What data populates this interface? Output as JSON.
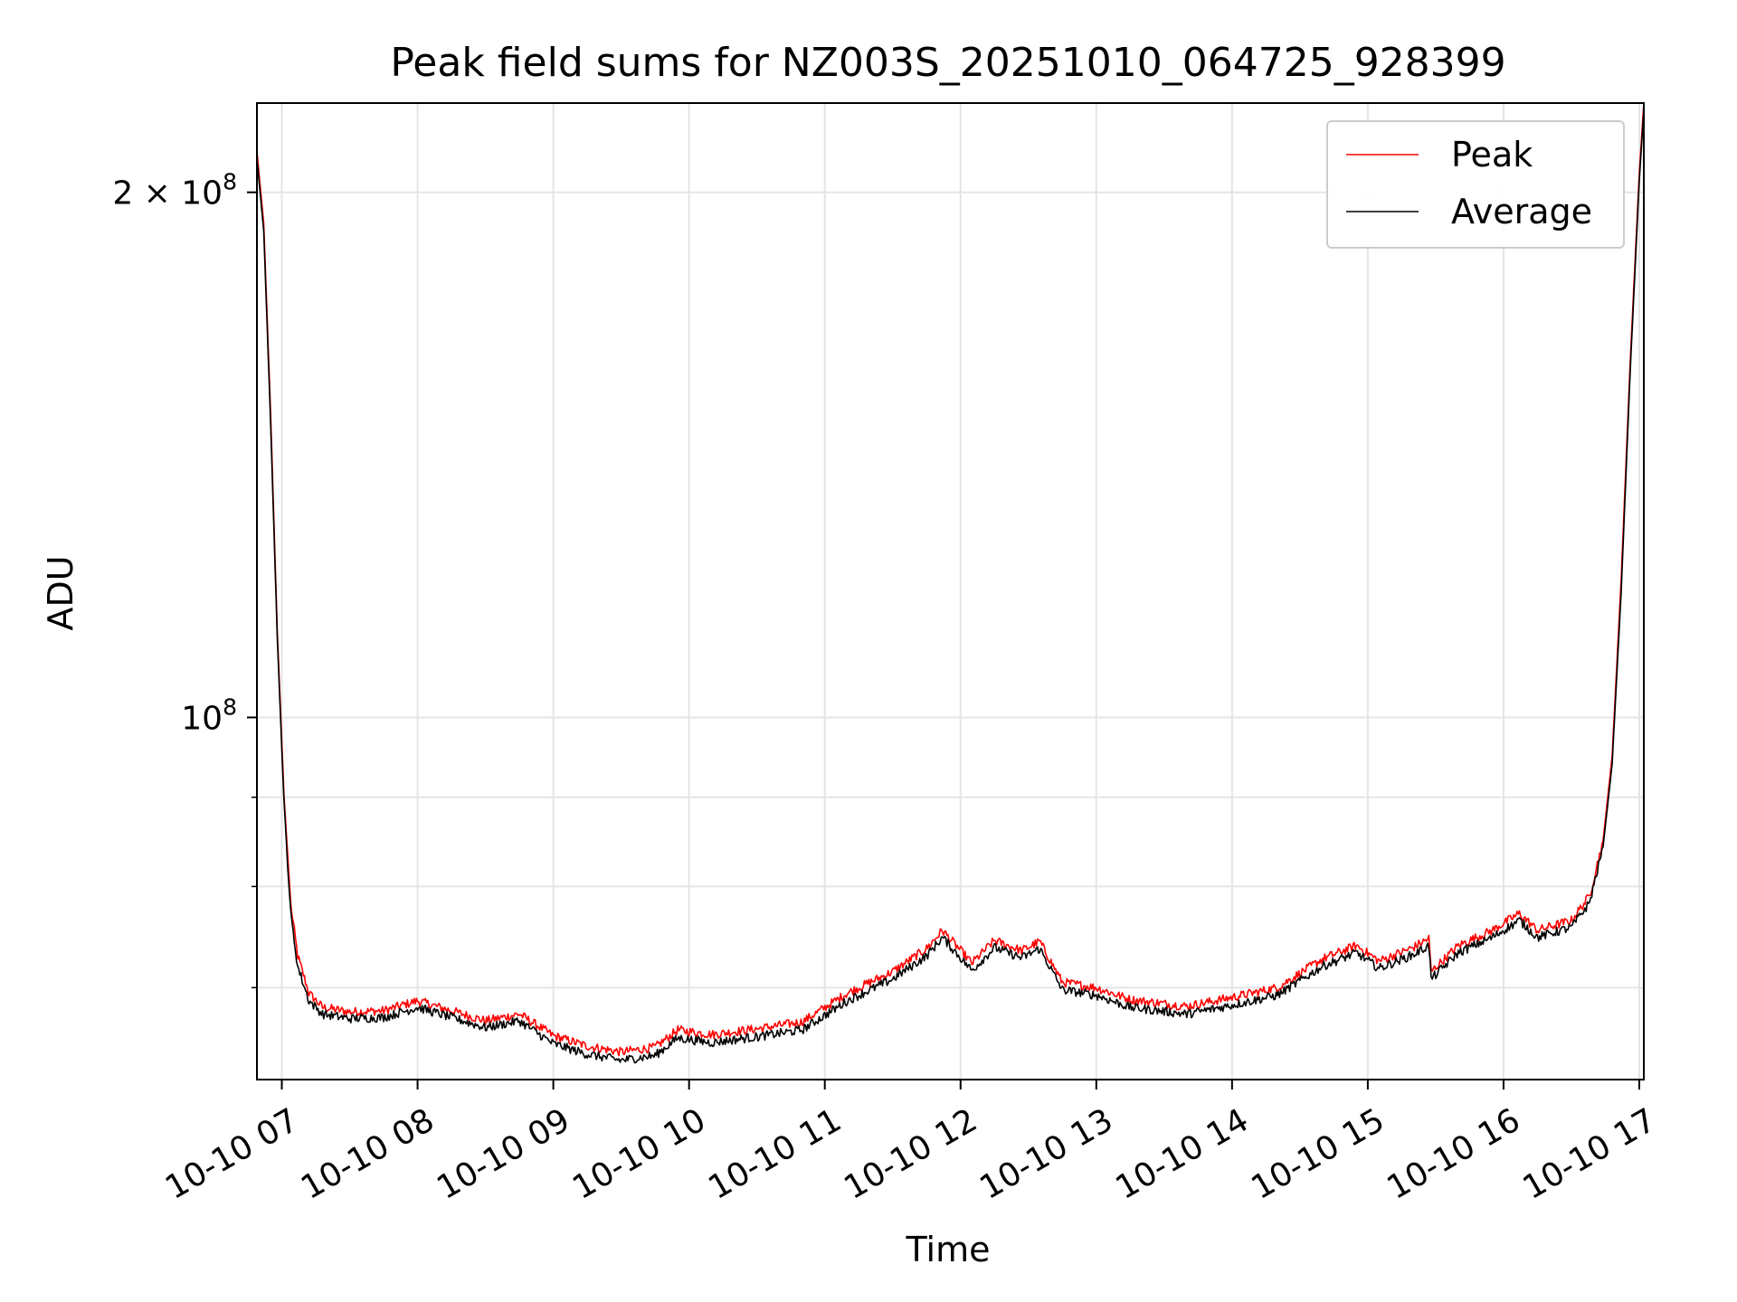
{
  "chart_data": {
    "type": "line",
    "title": "Peak field sums for NZ003S_20251010_064725_928399",
    "xlabel": "Time",
    "ylabel": "ADU",
    "x_axis_type": "time",
    "xlim": [
      "2025-10-10 06:49",
      "2025-10-10 17:02"
    ],
    "x_ticks": [
      "10-10 07",
      "10-10 08",
      "10-10 09",
      "10-10 10",
      "10-10 11",
      "10-10 12",
      "10-10 13",
      "10-10 14",
      "10-10 15",
      "10-10 16",
      "10-10 17"
    ],
    "y_scale": "log",
    "ylim": [
      62000000,
      225000000
    ],
    "y_tick_labels": [
      {
        "value": 100000000,
        "base": "10",
        "exp": "8",
        "label": "10^8"
      },
      {
        "value": 200000000,
        "mantissa": "2",
        "base": "10",
        "exp": "8",
        "label": "2 × 10^8"
      }
    ],
    "y_minor_ticks": [
      70000000,
      80000000,
      90000000
    ],
    "grid": true,
    "legend_position": "top-right",
    "series": [
      {
        "name": "Peak",
        "color": "#ff0000",
        "points": [
          [
            "2025-10-10 06:49",
            211000000
          ],
          [
            "2025-10-10 06:52",
            192000000
          ],
          [
            "2025-10-10 06:55",
            150000000
          ],
          [
            "2025-10-10 06:58",
            112000000
          ],
          [
            "2025-10-10 07:01",
            90000000
          ],
          [
            "2025-10-10 07:04",
            78000000
          ],
          [
            "2025-10-10 07:07",
            73000000
          ],
          [
            "2025-10-10 07:12",
            69500000
          ],
          [
            "2025-10-10 07:18",
            68200000
          ],
          [
            "2025-10-10 07:30",
            67800000
          ],
          [
            "2025-10-10 07:45",
            67900000
          ],
          [
            "2025-10-10 08:00",
            68800000
          ],
          [
            "2025-10-10 08:15",
            67900000
          ],
          [
            "2025-10-10 08:30",
            67000000
          ],
          [
            "2025-10-10 08:45",
            67600000
          ],
          [
            "2025-10-10 09:00",
            65700000
          ],
          [
            "2025-10-10 09:15",
            64800000
          ],
          [
            "2025-10-10 09:30",
            64300000
          ],
          [
            "2025-10-10 09:45",
            64700000
          ],
          [
            "2025-10-10 09:55",
            66200000
          ],
          [
            "2025-10-10 10:10",
            65800000
          ],
          [
            "2025-10-10 10:30",
            66300000
          ],
          [
            "2025-10-10 10:50",
            66900000
          ],
          [
            "2025-10-10 11:10",
            69500000
          ],
          [
            "2025-10-10 11:30",
            71500000
          ],
          [
            "2025-10-10 11:45",
            73700000
          ],
          [
            "2025-10-10 11:52",
            75500000
          ],
          [
            "2025-10-10 12:05",
            72300000
          ],
          [
            "2025-10-10 12:15",
            74500000
          ],
          [
            "2025-10-10 12:27",
            73500000
          ],
          [
            "2025-10-10 12:35",
            74400000
          ],
          [
            "2025-10-10 12:45",
            70500000
          ],
          [
            "2025-10-10 13:00",
            70000000
          ],
          [
            "2025-10-10 13:15",
            68900000
          ],
          [
            "2025-10-10 13:40",
            68300000
          ],
          [
            "2025-10-10 14:00",
            69100000
          ],
          [
            "2025-10-10 14:20",
            70000000
          ],
          [
            "2025-10-10 14:40",
            72700000
          ],
          [
            "2025-10-10 14:55",
            74000000
          ],
          [
            "2025-10-10 15:05",
            72500000
          ],
          [
            "2025-10-10 15:20",
            73800000
          ],
          [
            "2025-10-10 15:27",
            74700000
          ],
          [
            "2025-10-10 15:28",
            71500000
          ],
          [
            "2025-10-10 15:40",
            74000000
          ],
          [
            "2025-10-10 15:55",
            75500000
          ],
          [
            "2025-10-10 16:07",
            77200000
          ],
          [
            "2025-10-10 16:15",
            75500000
          ],
          [
            "2025-10-10 16:30",
            76500000
          ],
          [
            "2025-10-10 16:38",
            79000000
          ],
          [
            "2025-10-10 16:44",
            85000000
          ],
          [
            "2025-10-10 16:48",
            95000000
          ],
          [
            "2025-10-10 16:52",
            120000000
          ],
          [
            "2025-10-10 16:56",
            160000000
          ],
          [
            "2025-10-10 17:00",
            205000000
          ],
          [
            "2025-10-10 17:02",
            225000000
          ]
        ]
      },
      {
        "name": "Average",
        "color": "#000000",
        "points": [
          [
            "2025-10-10 06:49",
            209000000
          ],
          [
            "2025-10-10 06:52",
            190000000
          ],
          [
            "2025-10-10 06:55",
            148000000
          ],
          [
            "2025-10-10 06:58",
            111000000
          ],
          [
            "2025-10-10 07:01",
            89000000
          ],
          [
            "2025-10-10 07:04",
            77000000
          ],
          [
            "2025-10-10 07:07",
            72000000
          ],
          [
            "2025-10-10 07:12",
            68800000
          ],
          [
            "2025-10-10 07:18",
            67600000
          ],
          [
            "2025-10-10 07:30",
            67200000
          ],
          [
            "2025-10-10 07:45",
            67300000
          ],
          [
            "2025-10-10 08:00",
            68200000
          ],
          [
            "2025-10-10 08:15",
            67300000
          ],
          [
            "2025-10-10 08:30",
            66400000
          ],
          [
            "2025-10-10 08:45",
            67000000
          ],
          [
            "2025-10-10 09:00",
            65000000
          ],
          [
            "2025-10-10 09:15",
            64100000
          ],
          [
            "2025-10-10 09:30",
            63600000
          ],
          [
            "2025-10-10 09:45",
            64000000
          ],
          [
            "2025-10-10 09:55",
            65500000
          ],
          [
            "2025-10-10 10:10",
            65100000
          ],
          [
            "2025-10-10 10:30",
            65600000
          ],
          [
            "2025-10-10 10:50",
            66200000
          ],
          [
            "2025-10-10 11:10",
            68800000
          ],
          [
            "2025-10-10 11:30",
            70800000
          ],
          [
            "2025-10-10 11:45",
            73000000
          ],
          [
            "2025-10-10 11:52",
            74800000
          ],
          [
            "2025-10-10 12:05",
            71600000
          ],
          [
            "2025-10-10 12:15",
            73800000
          ],
          [
            "2025-10-10 12:27",
            72800000
          ],
          [
            "2025-10-10 12:35",
            73700000
          ],
          [
            "2025-10-10 12:45",
            69800000
          ],
          [
            "2025-10-10 13:00",
            69300000
          ],
          [
            "2025-10-10 13:15",
            68200000
          ],
          [
            "2025-10-10 13:40",
            67600000
          ],
          [
            "2025-10-10 14:00",
            68400000
          ],
          [
            "2025-10-10 14:20",
            69300000
          ],
          [
            "2025-10-10 14:40",
            72000000
          ],
          [
            "2025-10-10 14:55",
            73300000
          ],
          [
            "2025-10-10 15:05",
            71800000
          ],
          [
            "2025-10-10 15:20",
            73100000
          ],
          [
            "2025-10-10 15:27",
            74000000
          ],
          [
            "2025-10-10 15:28",
            70800000
          ],
          [
            "2025-10-10 15:40",
            73300000
          ],
          [
            "2025-10-10 15:55",
            74800000
          ],
          [
            "2025-10-10 16:07",
            76500000
          ],
          [
            "2025-10-10 16:15",
            74800000
          ],
          [
            "2025-10-10 16:30",
            75800000
          ],
          [
            "2025-10-10 16:38",
            78300000
          ],
          [
            "2025-10-10 16:44",
            84300000
          ],
          [
            "2025-10-10 16:48",
            94000000
          ],
          [
            "2025-10-10 16:52",
            118000000
          ],
          [
            "2025-10-10 16:56",
            158000000
          ],
          [
            "2025-10-10 17:00",
            203000000
          ],
          [
            "2025-10-10 17:02",
            223000000
          ]
        ]
      }
    ]
  }
}
